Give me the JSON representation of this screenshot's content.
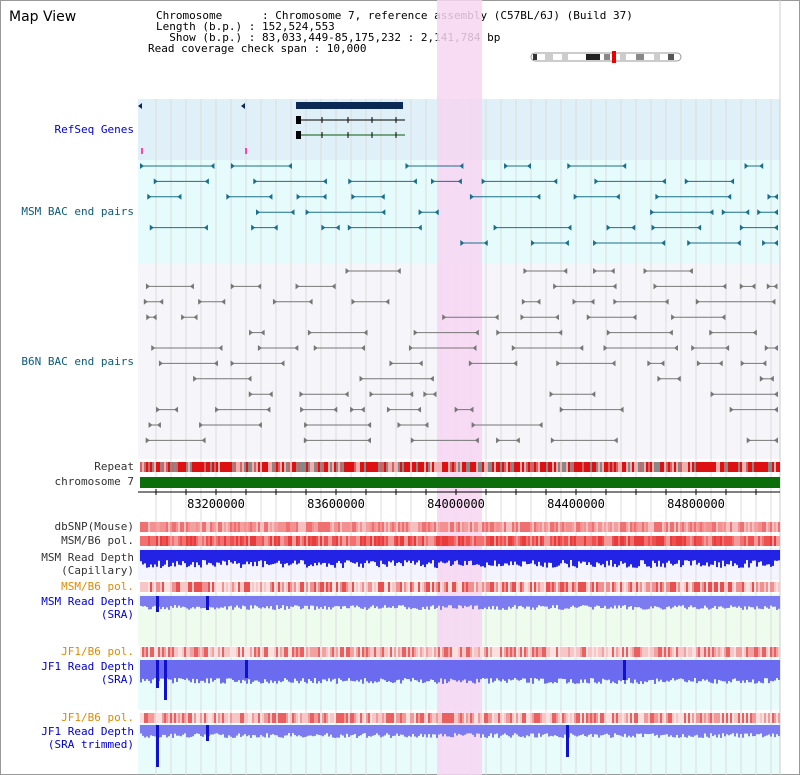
{
  "title": "Map View",
  "info": {
    "chromosome": "Chromosome      : Chromosome 7, reference assembly (C57BL/6J) (Build 37)",
    "length": "Length (b.p.) : 152,524,553",
    "show": "  Show (b.p.) : 83,033,449-85,175,232 : 2,141,784 bp",
    "coverage": "Read coverage check span : 10,000"
  },
  "tracks": {
    "refseq": "RefSeq Genes",
    "msm_bac": "MSM BAC end pairs",
    "b6n_bac": "B6N BAC end pairs",
    "repeat": "Repeat",
    "chromosome": "chromosome 7",
    "dbsnp": "dbSNP(Mouse)",
    "msm_b6_pol": "MSM/B6 pol.",
    "msm_read_depth_cap_1": "MSM Read Depth",
    "msm_read_depth_cap_2": "(Capillary)",
    "msm_b6_pol_sra": "MSM/B6 pol.",
    "msm_read_depth_sra_1": "MSM Read Depth",
    "msm_read_depth_sra_2": "(SRA)",
    "jf1_b6_pol": "JF1/B6 pol.",
    "jf1_read_depth_1": "JF1 Read Depth",
    "jf1_read_depth_2": "(SRA)",
    "jf1_b6_pol_trim": "JF1/B6 pol.",
    "jf1_read_depth_trim_1": "JF1 Read Depth",
    "jf1_read_depth_trim_2": "(SRA trimmed)"
  },
  "axis_ticks": [
    "83200000",
    "83600000",
    "84000000",
    "84400000",
    "84800000"
  ],
  "colors": {
    "refseq_bg": "#dff0f8",
    "msm_bg": "#e6fbfb",
    "b6n_bg": "#f6f6fa",
    "highlight": "#f7d6f2",
    "chromosome_bar": "#0b6e0b",
    "msm_feature": "#1a6f8c",
    "b6n_feature": "#777777",
    "depth_blue": "#2323e6",
    "depth_light": "#7070f0"
  }
}
